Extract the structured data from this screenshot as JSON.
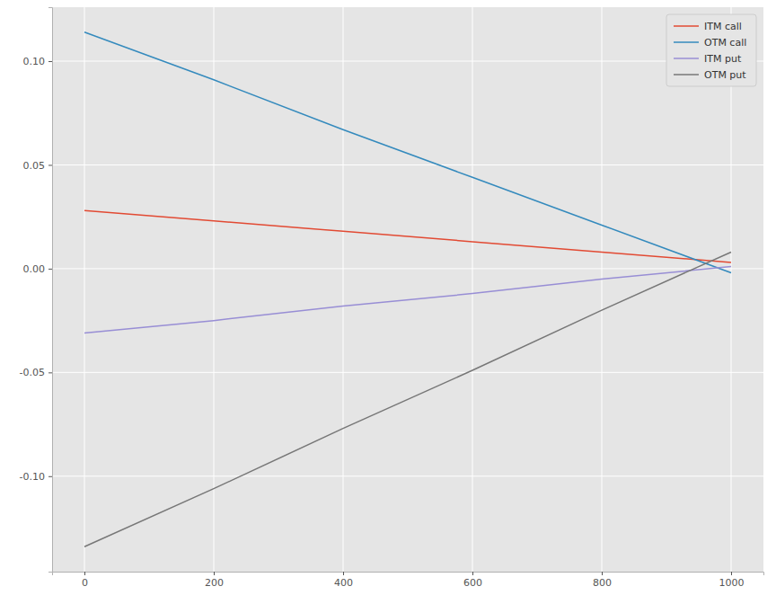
{
  "chart_data": {
    "type": "line",
    "x": [
      0,
      200,
      400,
      600,
      800,
      1000
    ],
    "series": [
      {
        "name": "ITM call",
        "color": "#E24A33",
        "values": [
          0.028,
          0.023,
          0.018,
          0.013,
          0.008,
          0.003
        ]
      },
      {
        "name": "OTM call",
        "color": "#348ABD",
        "values": [
          0.114,
          0.091,
          0.067,
          0.044,
          0.021,
          -0.002
        ]
      },
      {
        "name": "ITM put",
        "color": "#988ED5",
        "values": [
          -0.031,
          -0.025,
          -0.018,
          -0.012,
          -0.005,
          0.001
        ]
      },
      {
        "name": "OTM put",
        "color": "#777777",
        "values": [
          -0.134,
          -0.106,
          -0.077,
          -0.049,
          -0.02,
          0.008
        ]
      }
    ],
    "xlim": [
      -50,
      1050
    ],
    "ylim": [
      -0.146,
      0.126
    ],
    "xticks": [
      0,
      200,
      400,
      600,
      800,
      1000
    ],
    "yticks": [
      {
        "value": -0.1,
        "label": "-0.10"
      },
      -0.05,
      {
        "value": 0,
        "label": "0.00"
      },
      0.05,
      {
        "value": 0.1,
        "label": "0.10"
      }
    ],
    "grid": true,
    "legend": "upper right"
  }
}
